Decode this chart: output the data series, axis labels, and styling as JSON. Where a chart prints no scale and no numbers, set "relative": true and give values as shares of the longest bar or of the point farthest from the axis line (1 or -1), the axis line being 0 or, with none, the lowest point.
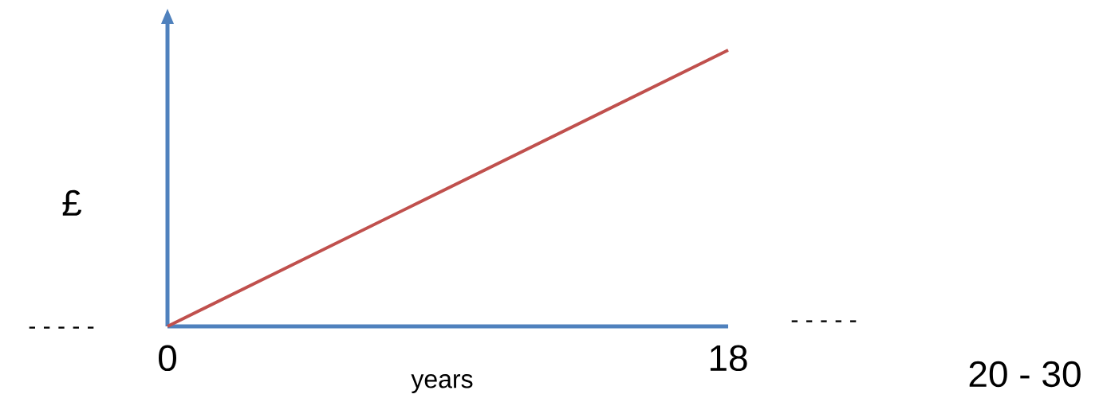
{
  "chart_data": {
    "type": "line",
    "relative": true,
    "xlabel": "years",
    "ylabel": "£",
    "x": [
      0,
      18
    ],
    "xlim": [
      0,
      18
    ],
    "xticks": [
      0,
      18
    ],
    "series": [
      {
        "color": "#c0504d",
        "values": [
          0,
          1
        ]
      }
    ],
    "annotations": [
      "- - - - -",
      "- - - - -",
      "20 - 30"
    ]
  }
}
